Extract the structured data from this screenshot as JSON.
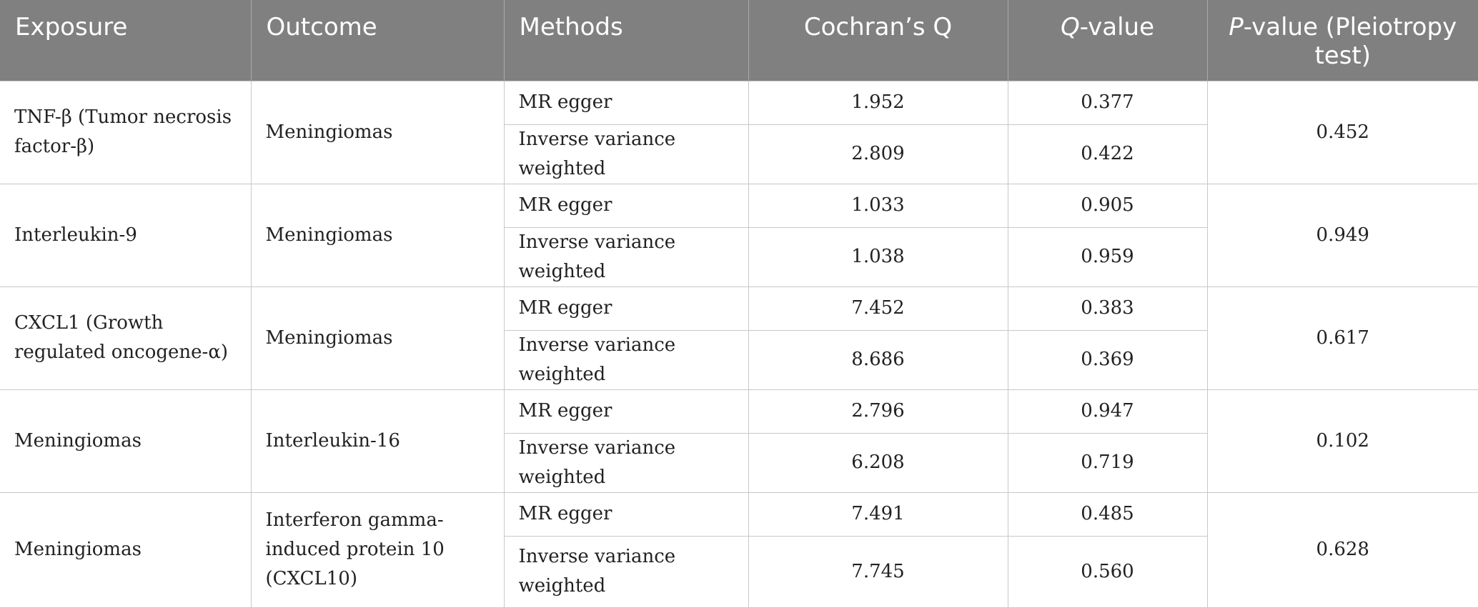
{
  "table": {
    "headers": {
      "exposure": "Exposure",
      "outcome": "Outcome",
      "methods": "Methods",
      "cochran": "Cochran’s Q",
      "qvalue_italic": "Q",
      "qvalue_rest": "-value",
      "pvalue_italic": "P",
      "pvalue_rest": "-value (Pleiotropy test)"
    },
    "groups": [
      {
        "exposure": "TNF-β (Tumor necrosis factor-β)",
        "outcome": "Meningiomas",
        "rows": [
          {
            "method": "MR egger",
            "cochran": "1.952",
            "q": "0.377"
          },
          {
            "method": "Inverse variance weighted",
            "cochran": "2.809",
            "q": "0.422"
          }
        ],
        "p": "0.452"
      },
      {
        "exposure": "Interleukin-9",
        "outcome": "Meningiomas",
        "rows": [
          {
            "method": "MR egger",
            "cochran": "1.033",
            "q": "0.905"
          },
          {
            "method": "Inverse variance weighted",
            "cochran": "1.038",
            "q": "0.959"
          }
        ],
        "p": "0.949"
      },
      {
        "exposure": "CXCL1 (Growth regulated oncogene-α)",
        "outcome": "Meningiomas",
        "rows": [
          {
            "method": "MR egger",
            "cochran": "7.452",
            "q": "0.383"
          },
          {
            "method": "Inverse variance weighted",
            "cochran": "8.686",
            "q": "0.369"
          }
        ],
        "p": "0.617"
      },
      {
        "exposure": "Meningiomas",
        "outcome": "Interleukin-16",
        "rows": [
          {
            "method": "MR egger",
            "cochran": "2.796",
            "q": "0.947"
          },
          {
            "method": "Inverse variance weighted",
            "cochran": "6.208",
            "q": "0.719"
          }
        ],
        "p": "0.102"
      },
      {
        "exposure": "Meningiomas",
        "outcome": "Interferon gamma-induced protein 10 (CXCL10)",
        "rows": [
          {
            "method": "MR egger",
            "cochran": "7.491",
            "q": "0.485"
          },
          {
            "method": "Inverse variance weighted",
            "cochran": "7.745",
            "q": "0.560"
          }
        ],
        "p": "0.628"
      }
    ]
  }
}
